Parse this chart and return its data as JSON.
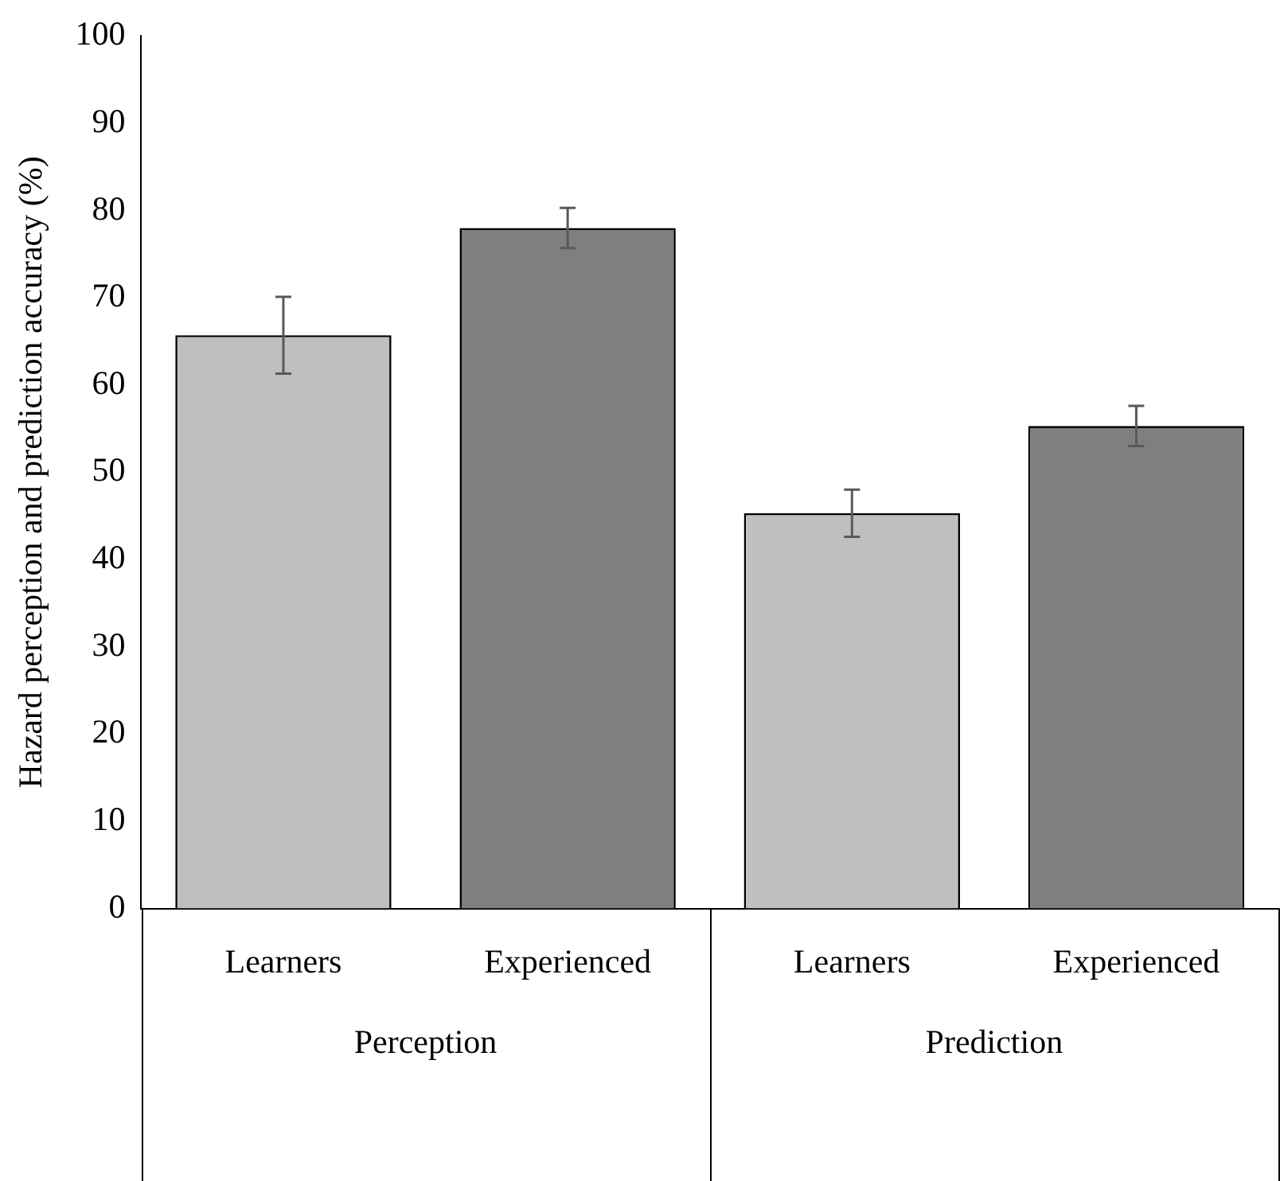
{
  "chart_data": {
    "type": "bar",
    "ylabel": "Hazard perception and prediction accuracy (%)",
    "categories": [
      "Learners",
      "Experienced",
      "Learners",
      "Experienced"
    ],
    "values": [
      65.7,
      78.0,
      45.3,
      55.3
    ],
    "colors": [
      "#bfbfbf",
      "#7f7f7f",
      "#bfbfbf",
      "#7f7f7f"
    ],
    "errors": [
      4.4,
      2.3,
      2.7,
      2.3
    ],
    "ylim": [
      0,
      100
    ],
    "yticks": [
      0,
      10,
      20,
      30,
      40,
      50,
      60,
      70,
      80,
      90,
      100
    ],
    "annotations": [
      "Perception",
      "Prediction"
    ]
  }
}
